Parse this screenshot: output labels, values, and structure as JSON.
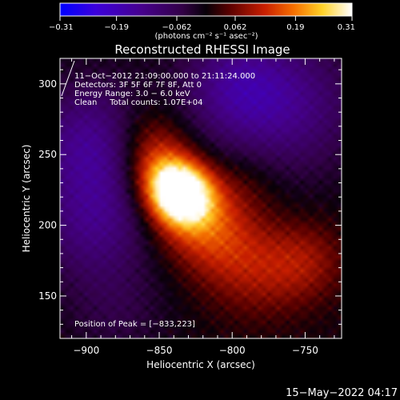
{
  "chart_data": {
    "type": "heatmap",
    "title": "Reconstructed RHESSI Image",
    "xlabel": "Heliocentric X (arcsec)",
    "ylabel": "Heliocentric Y (arcsec)",
    "xlim": [
      -918,
      -725
    ],
    "ylim": [
      120,
      318
    ],
    "xticks": [
      -900,
      -850,
      -800,
      -750
    ],
    "yticks": [
      150,
      200,
      250,
      300
    ],
    "xtick_labels": [
      "−900",
      "−850",
      "−800",
      "−750"
    ],
    "ytick_labels": [
      "150",
      "200",
      "250",
      "300"
    ],
    "colorbar": {
      "min": -0.31,
      "max": 0.31,
      "ticks": [
        -0.31,
        -0.19,
        -0.062,
        0.062,
        0.19,
        0.31
      ],
      "tick_labels": [
        "−0.31",
        "−0.19",
        "−0.062",
        "0.062",
        "0.19",
        "0.31"
      ],
      "unit_label": "(photons cm⁻² s⁻¹ asec⁻²)",
      "colormap": "RHESSI blue-purple-red-yellow-white"
    },
    "annotations": [
      "11−Oct−2012 21:09:00.000 to 21:11:24.000",
      "Detectors: 3F 5F 6F 7F 8F, Att 0",
      "Energy Range: 3.0 − 6.0 keV",
      "Clean     Total counts: 1.07E+04"
    ],
    "peak": {
      "x": -833,
      "y": 223,
      "label": "Position of Peak = [−833,223]"
    },
    "sources": [
      {
        "x": -835,
        "y": 222,
        "sigma": 14,
        "amp": 1.0
      },
      {
        "x": -848,
        "y": 236,
        "sigma": 16,
        "amp": 0.55
      },
      {
        "x": -828,
        "y": 210,
        "sigma": 20,
        "amp": 0.45
      },
      {
        "x": -858,
        "y": 262,
        "sigma": 18,
        "amp": 0.3
      },
      {
        "x": -808,
        "y": 188,
        "sigma": 22,
        "amp": 0.28
      },
      {
        "x": -782,
        "y": 165,
        "sigma": 24,
        "amp": 0.22
      },
      {
        "x": -750,
        "y": 175,
        "sigma": 20,
        "amp": 0.25
      },
      {
        "x": -790,
        "y": 230,
        "sigma": 18,
        "amp": 0.12
      }
    ],
    "negative_regions": [
      {
        "x": -895,
        "y": 258,
        "sigma": 30,
        "amp": -0.45
      },
      {
        "x": -895,
        "y": 200,
        "sigma": 28,
        "amp": -0.35
      },
      {
        "x": -765,
        "y": 285,
        "sigma": 35,
        "amp": -0.4
      },
      {
        "x": -800,
        "y": 300,
        "sigma": 25,
        "amp": -0.3
      },
      {
        "x": -880,
        "y": 140,
        "sigma": 25,
        "amp": -0.15
      }
    ]
  },
  "footer": {
    "timestamp": "15−May−2022 04:17"
  }
}
